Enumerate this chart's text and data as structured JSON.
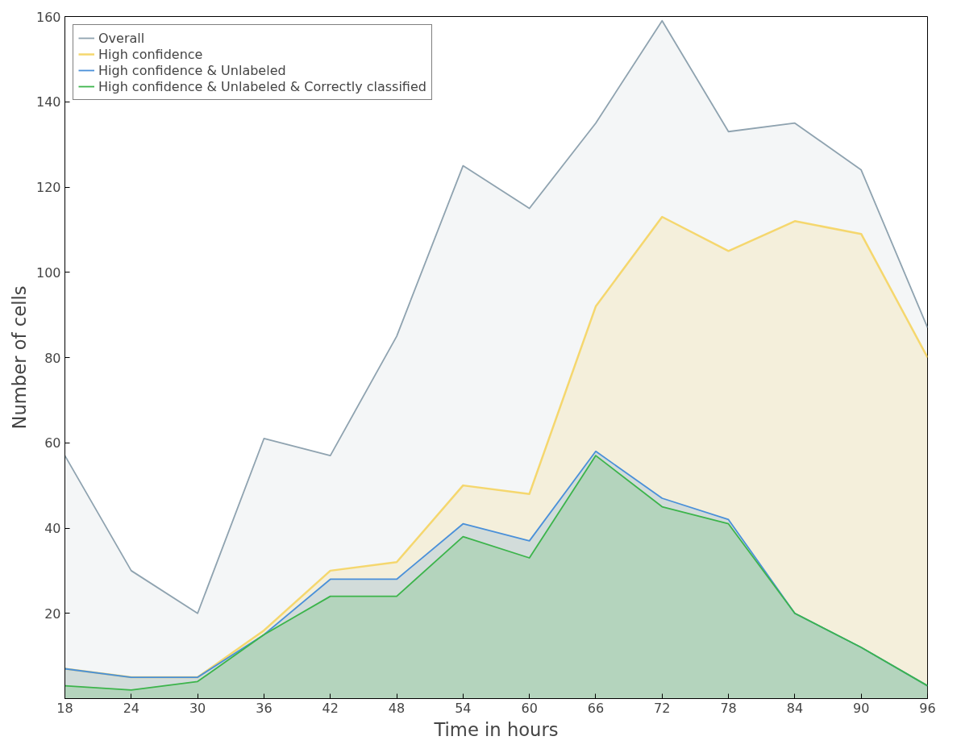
{
  "chart_data": {
    "type": "area",
    "xlabel": "Time in hours",
    "ylabel": "Number of cells",
    "x": [
      18,
      24,
      30,
      36,
      42,
      48,
      54,
      60,
      66,
      72,
      78,
      84,
      90,
      96
    ],
    "series": [
      {
        "name": "Overall",
        "color": "#8fa3b0",
        "values": [
          57,
          30,
          20,
          61,
          57,
          85,
          125,
          115,
          135,
          159,
          133,
          135,
          124,
          87
        ]
      },
      {
        "name": "High confidence",
        "color": "#f5d76e",
        "values": [
          7,
          5,
          5,
          16,
          30,
          32,
          50,
          48,
          92,
          113,
          105,
          112,
          109,
          80
        ]
      },
      {
        "name": "High confidence & Unlabeled",
        "color": "#4a90d9",
        "values": [
          7,
          5,
          5,
          15,
          28,
          28,
          41,
          37,
          58,
          47,
          42,
          20,
          12,
          3
        ]
      },
      {
        "name": "High confidence & Unlabeled & Correctly classified",
        "color": "#3cb44b",
        "values": [
          3,
          2,
          4,
          15,
          24,
          24,
          38,
          33,
          57,
          45,
          41,
          20,
          12,
          3
        ]
      }
    ],
    "xlim": [
      18,
      96
    ],
    "ylim": [
      0,
      160
    ],
    "xticks": [
      18,
      24,
      30,
      36,
      42,
      48,
      54,
      60,
      66,
      72,
      78,
      84,
      90,
      96
    ],
    "yticks": [
      20,
      40,
      60,
      80,
      100,
      120,
      140,
      160
    ],
    "legend": "top left",
    "grid": false
  }
}
